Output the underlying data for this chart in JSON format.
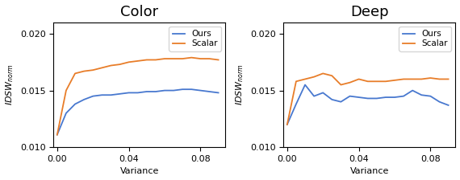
{
  "color_ours_x": [
    0.0,
    0.005,
    0.01,
    0.015,
    0.02,
    0.025,
    0.03,
    0.035,
    0.04,
    0.045,
    0.05,
    0.055,
    0.06,
    0.065,
    0.07,
    0.075,
    0.08,
    0.085,
    0.09
  ],
  "color_ours_y": [
    0.0111,
    0.013,
    0.0138,
    0.0142,
    0.0145,
    0.0146,
    0.0146,
    0.0147,
    0.0148,
    0.0148,
    0.0149,
    0.0149,
    0.015,
    0.015,
    0.0151,
    0.0151,
    0.015,
    0.0149,
    0.0148
  ],
  "color_scalar_x": [
    0.0,
    0.005,
    0.01,
    0.015,
    0.02,
    0.025,
    0.03,
    0.035,
    0.04,
    0.045,
    0.05,
    0.055,
    0.06,
    0.065,
    0.07,
    0.075,
    0.08,
    0.085,
    0.09
  ],
  "color_scalar_y": [
    0.0111,
    0.015,
    0.0165,
    0.0167,
    0.0168,
    0.017,
    0.0172,
    0.0173,
    0.0175,
    0.0176,
    0.0177,
    0.0177,
    0.0178,
    0.0178,
    0.0178,
    0.0179,
    0.0178,
    0.0178,
    0.0177
  ],
  "deep_ours_x": [
    0.0,
    0.005,
    0.01,
    0.015,
    0.02,
    0.025,
    0.03,
    0.035,
    0.04,
    0.045,
    0.05,
    0.055,
    0.06,
    0.065,
    0.07,
    0.075,
    0.08,
    0.085,
    0.09
  ],
  "deep_ours_y": [
    0.012,
    0.0138,
    0.0155,
    0.0145,
    0.0148,
    0.0142,
    0.014,
    0.0145,
    0.0144,
    0.0143,
    0.0143,
    0.0144,
    0.0144,
    0.0145,
    0.015,
    0.0146,
    0.0145,
    0.014,
    0.0137
  ],
  "deep_scalar_x": [
    0.0,
    0.005,
    0.01,
    0.015,
    0.02,
    0.025,
    0.03,
    0.035,
    0.04,
    0.045,
    0.05,
    0.055,
    0.06,
    0.065,
    0.07,
    0.075,
    0.08,
    0.085,
    0.09
  ],
  "deep_scalar_y": [
    0.012,
    0.0158,
    0.016,
    0.0162,
    0.0165,
    0.0163,
    0.0155,
    0.0157,
    0.016,
    0.0158,
    0.0158,
    0.0158,
    0.0159,
    0.016,
    0.016,
    0.016,
    0.0161,
    0.016,
    0.016
  ],
  "color_ours_color": "#4878cf",
  "color_scalar_color": "#e87d29",
  "deep_ours_color": "#4878cf",
  "deep_scalar_color": "#e87d29",
  "ylim": [
    0.01,
    0.021
  ],
  "xlim": [
    -0.002,
    0.094
  ],
  "yticks": [
    0.01,
    0.015,
    0.02
  ],
  "xticks": [
    0.0,
    0.04,
    0.08
  ],
  "title_color": "Color",
  "title_deep": "Deep",
  "ylabel": "$IDSW_{norm}$",
  "xlabel": "Variance",
  "title_fontsize": 13,
  "label_fontsize": 8,
  "tick_fontsize": 8,
  "legend_fontsize": 7.5,
  "linewidth": 1.3
}
